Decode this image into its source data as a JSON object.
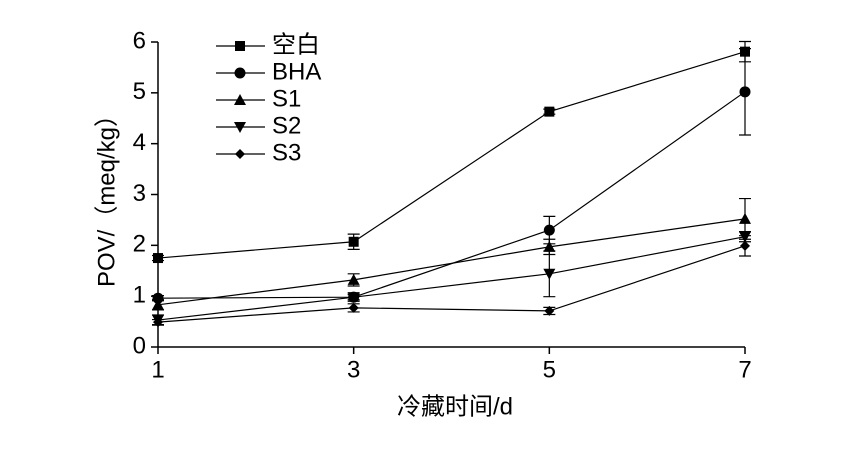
{
  "chart_data": {
    "type": "line",
    "xlabel": "冷藏时间/d",
    "ylabel": "POV/（meq/kg）",
    "x": [
      1,
      3,
      5,
      7
    ],
    "xlim": [
      1,
      7
    ],
    "xticks": [
      1,
      3,
      5,
      7
    ],
    "ylim": [
      0,
      6
    ],
    "yticks": [
      0,
      1,
      2,
      3,
      4,
      5,
      6
    ],
    "legend": "upper left",
    "series": [
      {
        "name": "空白",
        "color": "#000000",
        "marker": "square",
        "values": [
          1.75,
          2.07,
          4.63,
          5.81
        ],
        "errors": [
          0.05,
          0.15,
          0.05,
          0.2
        ]
      },
      {
        "name": "BHA",
        "color": "#000000",
        "marker": "circle",
        "values": [
          0.96,
          0.98,
          2.3,
          5.02
        ],
        "errors": [
          0.05,
          0.08,
          0.27,
          0.85
        ]
      },
      {
        "name": "S1",
        "color": "#000000",
        "marker": "triangle-up",
        "values": [
          0.83,
          1.32,
          1.97,
          2.52
        ],
        "errors": [
          0.1,
          0.12,
          0.15,
          0.4
        ]
      },
      {
        "name": "S2",
        "color": "#000000",
        "marker": "triangle-down",
        "values": [
          0.53,
          0.98,
          1.44,
          2.17
        ],
        "errors": [
          0.1,
          0.05,
          0.45,
          0.1
        ]
      },
      {
        "name": "S3",
        "color": "#000000",
        "marker": "diamond",
        "values": [
          0.49,
          0.77,
          0.71,
          1.99
        ],
        "errors": [
          0.05,
          0.08,
          0.07,
          0.2
        ]
      }
    ]
  }
}
